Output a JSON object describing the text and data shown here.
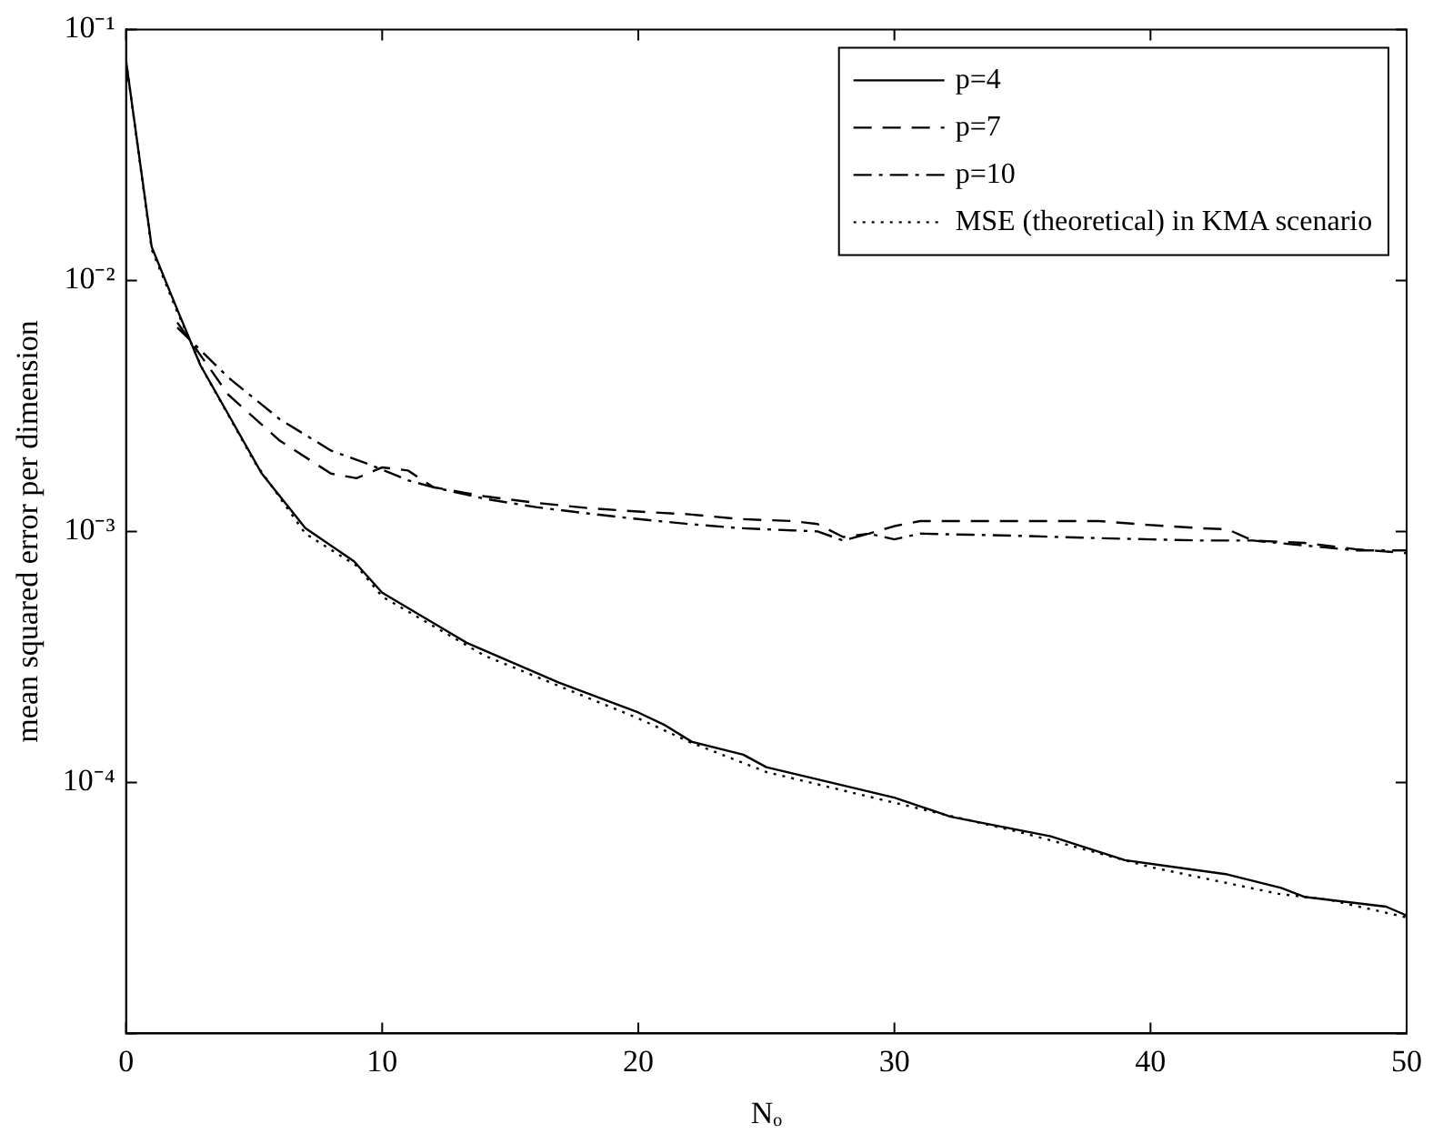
{
  "chart_data": {
    "type": "line",
    "xlabel": "Nₒ",
    "ylabel": "mean squared error per dimension",
    "log": "y",
    "xlim": [
      0,
      50
    ],
    "xticks": [
      0,
      10,
      20,
      30,
      40,
      50
    ],
    "ylim": [
      1e-05,
      0.1
    ],
    "yticks": [
      {
        "value": 0.1,
        "label": "10⁻¹"
      },
      {
        "value": 0.01,
        "label": "10⁻²"
      },
      {
        "value": 0.001,
        "label": "10⁻³"
      },
      {
        "value": 0.0001,
        "label": "10⁻⁴"
      },
      {
        "value": 1e-05,
        "label": null
      }
    ],
    "legend": "top right",
    "marker": "none",
    "series": [
      {
        "name": "p=4",
        "color": "#000000",
        "line_style": "solid",
        "x": [
          0,
          1,
          1.9,
          2.9,
          4.1,
          5.3,
          7,
          8.9,
          10,
          13.3,
          16.9,
          20,
          21,
          22.1,
          24.1,
          25,
          30,
          32.2,
          36.1,
          39,
          43,
          45.1,
          46,
          49.2,
          50
        ],
        "values": [
          0.075,
          0.0136,
          0.0081,
          0.0046,
          0.0028,
          0.0017,
          0.00103,
          0.00076,
          0.00057,
          0.00036,
          0.00025,
          0.00019,
          0.00017,
          0.000145,
          0.000129,
          0.000115,
          8.7e-05,
          7.3e-05,
          6.1e-05,
          4.9e-05,
          4.3e-05,
          3.8e-05,
          3.5e-05,
          3.2e-05,
          2.95e-05
        ]
      },
      {
        "name": "p=7",
        "color": "#000000",
        "line_style": "dashed",
        "x": [
          2,
          4,
          6,
          8,
          9,
          10,
          11,
          12,
          14,
          16,
          18,
          20,
          22,
          24,
          26,
          27,
          28,
          29,
          30,
          31,
          33,
          35,
          38,
          40,
          42,
          43,
          44,
          46,
          48,
          50
        ],
        "values": [
          0.0068,
          0.0035,
          0.0023,
          0.0017,
          0.00163,
          0.0018,
          0.00175,
          0.0015,
          0.00138,
          0.0013,
          0.00124,
          0.0012,
          0.00117,
          0.00112,
          0.0011,
          0.00107,
          0.00095,
          0.00098,
          0.00105,
          0.0011,
          0.0011,
          0.0011,
          0.0011,
          0.00106,
          0.00103,
          0.00102,
          0.00092,
          0.0009,
          0.00085,
          0.00082
        ]
      },
      {
        "name": "p=10",
        "color": "#000000",
        "line_style": "dashdot",
        "x": [
          2,
          4,
          6,
          8,
          9.5,
          11,
          12,
          14,
          16,
          18,
          20,
          22,
          24,
          26,
          27,
          28,
          29,
          30,
          31,
          33,
          35,
          38,
          40,
          42,
          44,
          46,
          48,
          50
        ],
        "values": [
          0.0065,
          0.0041,
          0.0028,
          0.0021,
          0.00185,
          0.0016,
          0.0015,
          0.00135,
          0.00125,
          0.00118,
          0.00112,
          0.00107,
          0.00103,
          0.00101,
          0.001,
          0.00092,
          0.00098,
          0.00093,
          0.00098,
          0.00097,
          0.00096,
          0.00094,
          0.00093,
          0.00092,
          0.00092,
          0.00088,
          0.00084,
          0.00084
        ]
      },
      {
        "name": "MSE (theoretical) in KMA scenario",
        "color": "#000000",
        "line_style": "dotted",
        "x": [
          0,
          1,
          2,
          3,
          4,
          5,
          7,
          9,
          10,
          14,
          17,
          20,
          22,
          25,
          30,
          35,
          40,
          45,
          47,
          50
        ],
        "values": [
          0.075,
          0.0133,
          0.0075,
          0.0044,
          0.0029,
          0.0019,
          0.00098,
          0.00073,
          0.00055,
          0.00032,
          0.00024,
          0.00018,
          0.000145,
          0.00011,
          8.3e-05,
          6.3e-05,
          4.6e-05,
          3.6e-05,
          3.4e-05,
          2.9e-05
        ]
      }
    ]
  }
}
